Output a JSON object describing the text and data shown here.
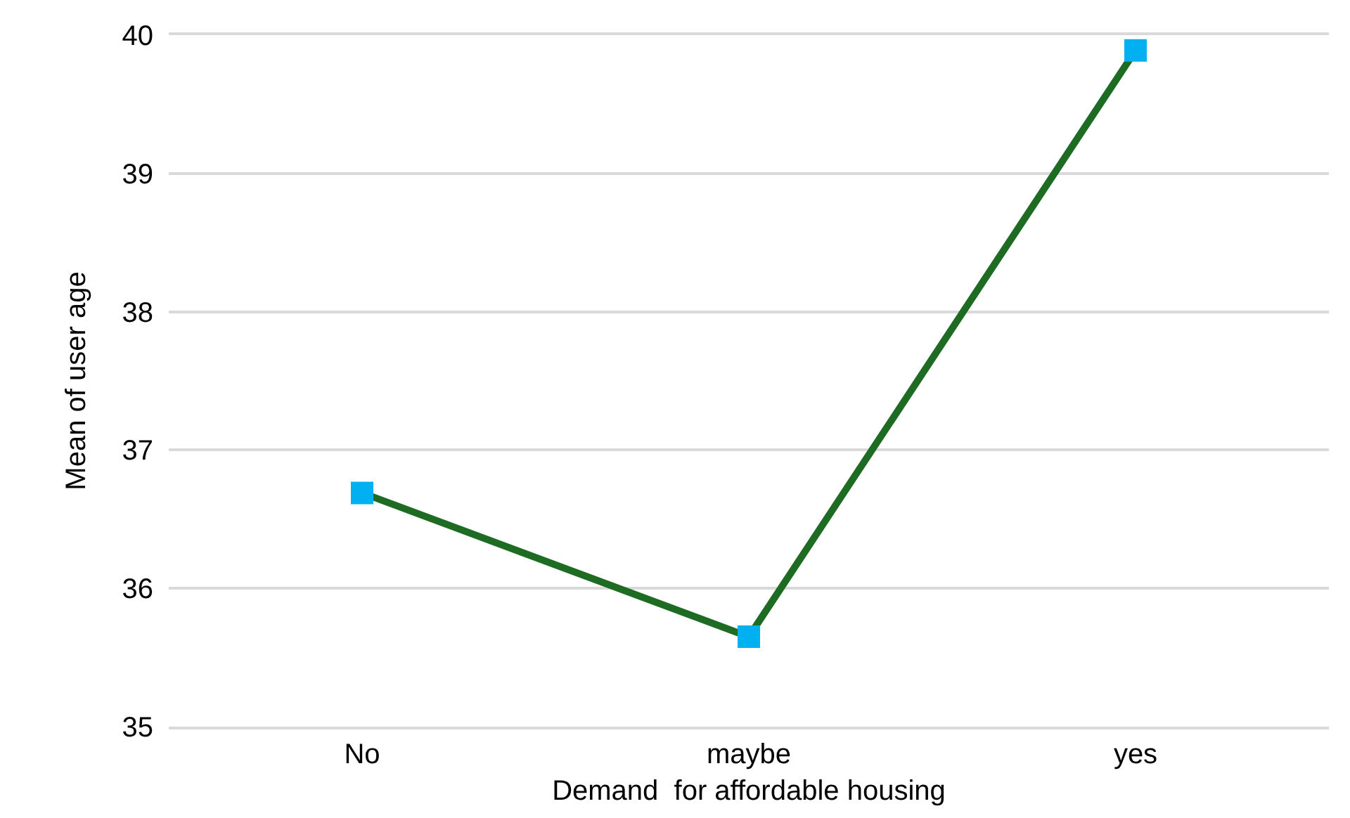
{
  "chart_data": {
    "type": "line",
    "xlabel": "Demand  for affordable housing",
    "ylabel": "Mean of user age",
    "categories": [
      "No",
      "maybe",
      "yes"
    ],
    "series": [
      {
        "color": "#1e6b24",
        "colors": [
          "#00b0f0",
          "#00b0f0",
          "#00b0f0"
        ],
        "values": [
          36.69,
          35.65,
          39.89
        ]
      }
    ],
    "ylim": [
      35,
      40
    ],
    "yticks": [
      35,
      36,
      37,
      38,
      39,
      40
    ],
    "grid": "y",
    "marker": "square",
    "line_style": "solid"
  }
}
